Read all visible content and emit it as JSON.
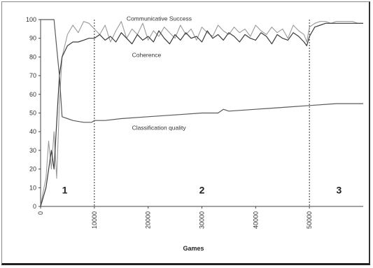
{
  "chart_data": {
    "type": "line",
    "title": "",
    "xlabel": "Games",
    "ylabel": "",
    "xlim": [
      0,
      60000
    ],
    "ylim": [
      0,
      100
    ],
    "yticks": [
      0,
      10,
      20,
      30,
      40,
      50,
      60,
      70,
      80,
      90,
      100
    ],
    "xticks": [
      0,
      10000,
      20000,
      30000,
      40000,
      50000
    ],
    "grid": false,
    "legend": "none",
    "series": [
      {
        "name": "Communicative Success",
        "color": "#9a9a9a",
        "x": [
          0,
          500,
          1000,
          1500,
          2000,
          2500,
          3000,
          3500,
          4000,
          5000,
          6000,
          7000,
          8000,
          9000,
          10000,
          11000,
          12000,
          13000,
          14000,
          15000,
          16000,
          17000,
          18000,
          19000,
          20000,
          21000,
          22000,
          23000,
          24000,
          25000,
          26000,
          27000,
          28000,
          29000,
          30000,
          31000,
          32000,
          33000,
          34000,
          35000,
          36000,
          37000,
          38000,
          39000,
          40000,
          41000,
          42000,
          43000,
          44000,
          45000,
          46000,
          47000,
          48000,
          49000,
          49500,
          50000,
          51000,
          52000,
          53000,
          54000,
          55000,
          56000,
          57000,
          58000,
          59000,
          60000
        ],
        "y": [
          0,
          8,
          15,
          35,
          20,
          40,
          15,
          55,
          80,
          92,
          97,
          93,
          99,
          98,
          95,
          92,
          97,
          88,
          94,
          99,
          90,
          95,
          92,
          98,
          89,
          94,
          91,
          96,
          93,
          90,
          97,
          92,
          95,
          89,
          96,
          93,
          91,
          97,
          94,
          92,
          96,
          93,
          95,
          91,
          97,
          94,
          92,
          96,
          93,
          95,
          90,
          97,
          94,
          92,
          88,
          96,
          98,
          99,
          99,
          98,
          99,
          99,
          99,
          99,
          98,
          98
        ]
      },
      {
        "name": "Coherence",
        "color": "#3a3a3a",
        "x": [
          0,
          1000,
          2000,
          2500,
          3000,
          3500,
          4000,
          5000,
          6000,
          7000,
          8000,
          9000,
          10000,
          11000,
          12000,
          13000,
          14000,
          15000,
          16000,
          17000,
          18000,
          19000,
          20000,
          21000,
          22000,
          23000,
          24000,
          25000,
          26000,
          27000,
          28000,
          29000,
          30000,
          31000,
          32000,
          33000,
          34000,
          35000,
          36000,
          37000,
          38000,
          39000,
          40000,
          41000,
          42000,
          43000,
          44000,
          45000,
          46000,
          47000,
          48000,
          49000,
          49500,
          50000,
          51000,
          52000,
          53000,
          54000,
          55000,
          56000,
          57000,
          58000,
          59000,
          60000
        ],
        "y": [
          0,
          10,
          30,
          20,
          45,
          70,
          80,
          86,
          88,
          88,
          89,
          90,
          90,
          92,
          89,
          91,
          88,
          93,
          90,
          87,
          92,
          89,
          91,
          88,
          94,
          90,
          87,
          92,
          89,
          93,
          90,
          91,
          88,
          94,
          90,
          92,
          89,
          93,
          91,
          88,
          92,
          90,
          89,
          93,
          91,
          87,
          92,
          90,
          89,
          93,
          91,
          88,
          86,
          91,
          96,
          97,
          98,
          98,
          98,
          98,
          98,
          98,
          98,
          98
        ]
      },
      {
        "name": "Classification quality",
        "color": "#5a5a5a",
        "x": [
          0,
          1500,
          2500,
          3000,
          3500,
          4000,
          5000,
          6000,
          8000,
          9500,
          10000,
          12000,
          15000,
          20000,
          25000,
          30000,
          33000,
          34000,
          35000,
          40000,
          45000,
          50000,
          55000,
          60000
        ],
        "y": [
          100,
          100,
          100,
          85,
          70,
          48,
          47,
          46,
          45,
          45,
          46,
          46,
          47,
          48,
          49,
          50,
          50,
          52,
          51,
          52,
          53,
          54,
          55,
          55
        ]
      }
    ],
    "annotations": [
      "Communicative Success",
      "Coherence",
      "Classification quality"
    ],
    "phase_labels": [
      "1",
      "2",
      "3"
    ],
    "phase_boundaries": [
      10000,
      50000
    ]
  }
}
